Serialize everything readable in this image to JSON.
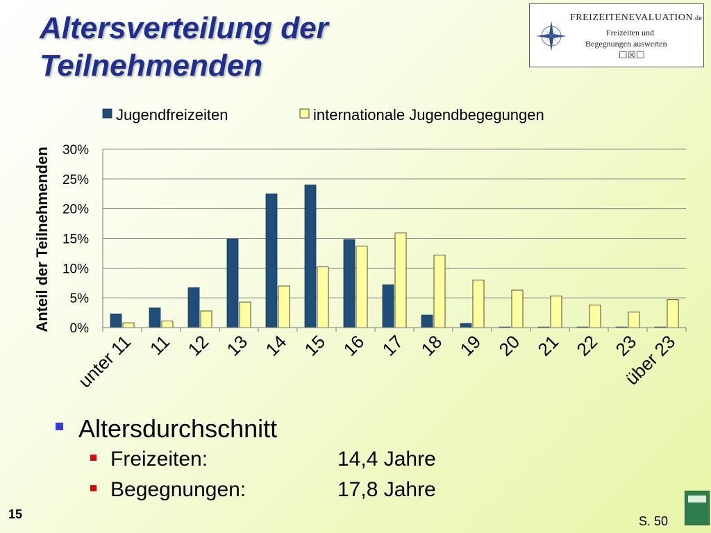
{
  "slide": {
    "title": "Altersverteilung der Teilnehmenden",
    "page_number": "15",
    "page_reference": "S. 50"
  },
  "logo": {
    "name": "FREIZEITENEVALUATION",
    "domain": ".de",
    "tagline_1": "Freizeiten und",
    "tagline_2": "Begegnungen auswerten",
    "checkbox_glyphs": "☐☒☐"
  },
  "summary": {
    "heading": "Altersdurchschnitt",
    "items": [
      {
        "label": "Freizeiten:",
        "value": "14,4 Jahre"
      },
      {
        "label": "Begegnungen:",
        "value": "17,8 Jahre"
      }
    ]
  },
  "colors": {
    "series_1": "#1f4e79",
    "series_2": "#ffffa0",
    "title": "#1f2f8f"
  },
  "chart_data": {
    "type": "bar",
    "ylabel": "Anteil der Teilnehmenden",
    "xlabel": "",
    "ylim": [
      0,
      30
    ],
    "yticks": [
      "0%",
      "5%",
      "10%",
      "15%",
      "20%",
      "25%",
      "30%"
    ],
    "grid": true,
    "legend_position": "top",
    "categories": [
      "unter 11",
      "11",
      "12",
      "13",
      "14",
      "15",
      "16",
      "17",
      "18",
      "19",
      "20",
      "21",
      "22",
      "23",
      "über 23"
    ],
    "series": [
      {
        "name": "Jugendfreizeiten",
        "values": [
          2.3,
          3.3,
          6.7,
          14.9,
          22.5,
          24.0,
          14.8,
          7.2,
          2.1,
          0.7,
          0.1,
          0.1,
          0.1,
          0.1,
          0.1
        ]
      },
      {
        "name": "internationale Jugendbegegungen",
        "values": [
          0.8,
          1.1,
          2.8,
          4.3,
          7.0,
          10.2,
          13.7,
          15.9,
          12.2,
          8.0,
          6.3,
          5.3,
          3.8,
          2.6,
          4.7
        ]
      }
    ]
  }
}
